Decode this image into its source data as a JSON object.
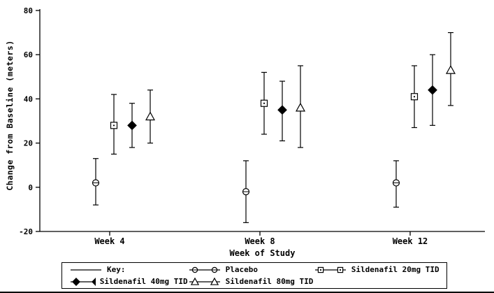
{
  "chart_data": {
    "type": "scatter",
    "title": "",
    "xlabel": "Week of Study",
    "ylabel": "Change from Baseline (meters)",
    "ylim": [
      -20,
      80
    ],
    "yticks": [
      80,
      60,
      40,
      20,
      0,
      -20
    ],
    "categories": [
      "Week 4",
      "Week 8",
      "Week 12"
    ],
    "grid": false,
    "error_bars": true,
    "series": [
      {
        "name": "Placebo",
        "marker": "circle",
        "filled": false,
        "values": [
          2,
          -2,
          2
        ],
        "ci_low": [
          -8,
          -16,
          -9
        ],
        "ci_high": [
          13,
          12,
          12
        ]
      },
      {
        "name": "Sildenafil 20mg TID",
        "marker": "square",
        "filled": false,
        "values": [
          28,
          38,
          41
        ],
        "ci_low": [
          15,
          24,
          27
        ],
        "ci_high": [
          42,
          52,
          55
        ]
      },
      {
        "name": "Sildenafil 40mg TID",
        "marker": "diamond",
        "filled": true,
        "values": [
          28,
          35,
          44
        ],
        "ci_low": [
          18,
          21,
          28
        ],
        "ci_high": [
          38,
          48,
          60
        ]
      },
      {
        "name": "Sildenafil 80mg TID",
        "marker": "triangle",
        "filled": false,
        "values": [
          32,
          36,
          53
        ],
        "ci_low": [
          20,
          18,
          37
        ],
        "ci_high": [
          44,
          55,
          70
        ]
      }
    ],
    "legend": {
      "key_label": "Key:",
      "position": "bottom"
    }
  }
}
